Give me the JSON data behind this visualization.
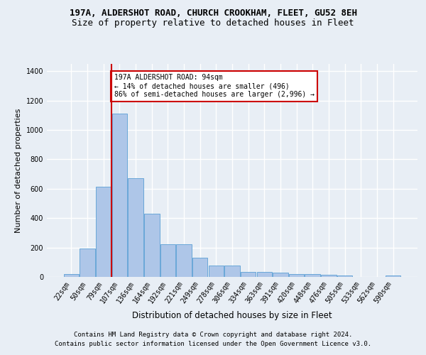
{
  "title1": "197A, ALDERSHOT ROAD, CHURCH CROOKHAM, FLEET, GU52 8EH",
  "title2": "Size of property relative to detached houses in Fleet",
  "xlabel": "Distribution of detached houses by size in Fleet",
  "ylabel": "Number of detached properties",
  "bin_labels": [
    "22sqm",
    "50sqm",
    "79sqm",
    "107sqm",
    "136sqm",
    "164sqm",
    "192sqm",
    "221sqm",
    "249sqm",
    "278sqm",
    "306sqm",
    "334sqm",
    "363sqm",
    "391sqm",
    "420sqm",
    "448sqm",
    "476sqm",
    "505sqm",
    "533sqm",
    "562sqm",
    "590sqm"
  ],
  "bar_heights": [
    20,
    195,
    615,
    1110,
    670,
    430,
    220,
    220,
    130,
    75,
    75,
    35,
    35,
    30,
    20,
    18,
    15,
    10,
    0,
    0,
    12
  ],
  "bar_color": "#aec6e8",
  "bar_edge_color": "#5a9fd4",
  "vline_x": 2.5,
  "vline_color": "#cc0000",
  "annotation_text": "197A ALDERSHOT ROAD: 94sqm\n← 14% of detached houses are smaller (496)\n86% of semi-detached houses are larger (2,996) →",
  "annotation_box_color": "#ffffff",
  "annotation_box_edge": "#cc0000",
  "ylim": [
    0,
    1450
  ],
  "yticks": [
    0,
    200,
    400,
    600,
    800,
    1000,
    1200,
    1400
  ],
  "footer1": "Contains HM Land Registry data © Crown copyright and database right 2024.",
  "footer2": "Contains public sector information licensed under the Open Government Licence v3.0.",
  "bg_color": "#e8eef5",
  "plot_bg_color": "#e8eef5",
  "grid_color": "#ffffff",
  "title1_fontsize": 9,
  "title2_fontsize": 9,
  "xlabel_fontsize": 8.5,
  "ylabel_fontsize": 8,
  "tick_fontsize": 7,
  "footer_fontsize": 6.5
}
